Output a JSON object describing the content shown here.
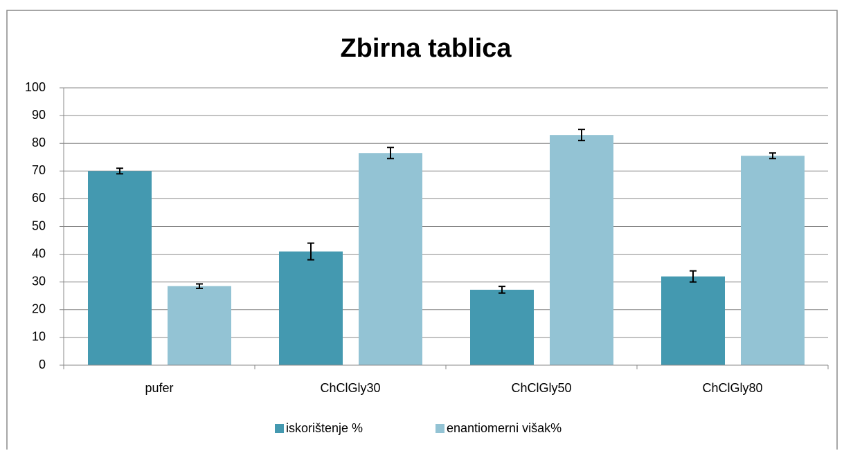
{
  "chart_data": {
    "type": "bar",
    "title": "Zbirna tablica",
    "categories": [
      "pufer",
      "ChClGly30",
      "ChClGly50",
      "ChClGly80"
    ],
    "series": [
      {
        "name": "iskorištenje %",
        "color": "#4499b0",
        "values": [
          70,
          41,
          27.2,
          32
        ],
        "errors": [
          1,
          3,
          1.2,
          2
        ]
      },
      {
        "name": "enantiomerni višak%",
        "color": "#93c3d4",
        "values": [
          28.5,
          76.5,
          83,
          75.5
        ],
        "errors": [
          0.8,
          2,
          2,
          1
        ]
      }
    ],
    "ylim": [
      0,
      100
    ],
    "yticks": [
      0,
      10,
      20,
      30,
      40,
      50,
      60,
      70,
      80,
      90,
      100
    ],
    "grid": true,
    "legend": "bottom"
  }
}
